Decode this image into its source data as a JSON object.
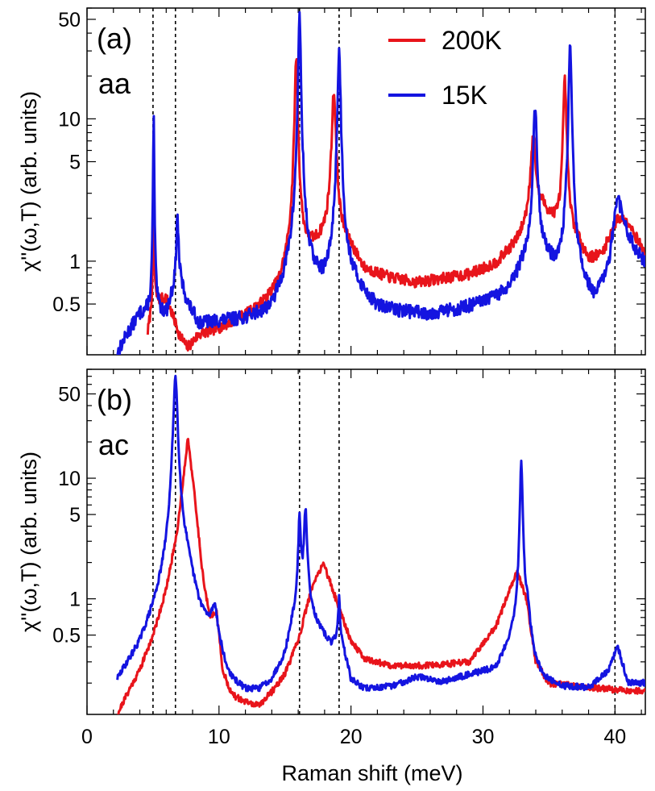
{
  "chart_data": {
    "type": "line",
    "xlabel": "Raman shift (meV)",
    "x_ticks": [
      0,
      10,
      20,
      30,
      40
    ],
    "xlim": [
      0,
      42.3
    ],
    "yscale": "log",
    "reference_lines_x": [
      5.0,
      6.7,
      16.1,
      19.1,
      40.0
    ],
    "legend": [
      {
        "name": "200K",
        "color": "#e8141b"
      },
      {
        "name": "15K",
        "color": "#1414e0"
      }
    ],
    "panels": [
      {
        "id": "a",
        "label": "(a)",
        "polarization": "aa",
        "ylabel": "χ''(ω,T) (arb. units)",
        "ylim": [
          0.22,
          60
        ],
        "y_tick_labels": [
          {
            "value": 50,
            "label": "50"
          },
          {
            "value": 10,
            "label": "10"
          },
          {
            "value": 5,
            "label": "5"
          },
          {
            "value": 1,
            "label": "1"
          },
          {
            "value": 0.5,
            "label": "0.5"
          }
        ],
        "series": [
          {
            "name": "200K",
            "color": "#e8141b",
            "baseline": [
              [
                4.6,
                0.3
              ],
              [
                5,
                0.5
              ],
              [
                6,
                0.55
              ],
              [
                7,
                0.3
              ],
              [
                7.6,
                0.24
              ],
              [
                8.5,
                0.3
              ],
              [
                10,
                0.33
              ],
              [
                12,
                0.4
              ],
              [
                13,
                0.45
              ],
              [
                14.5,
                0.6
              ],
              [
                15.5,
                1
              ],
              [
                17,
                1.2
              ],
              [
                18.5,
                1.5
              ],
              [
                20,
                1.2
              ],
              [
                21,
                0.85
              ],
              [
                23,
                0.75
              ],
              [
                25,
                0.7
              ],
              [
                27,
                0.75
              ],
              [
                29,
                0.8
              ],
              [
                31,
                0.95
              ],
              [
                32.5,
                1.3
              ],
              [
                34.5,
                2.3
              ],
              [
                35.5,
                1.8
              ],
              [
                37,
                1.4
              ],
              [
                38,
                1.0
              ],
              [
                39,
                1.1
              ],
              [
                40.2,
                2.0
              ],
              [
                41,
                1.9
              ],
              [
                42.3,
                1.1
              ]
            ],
            "peaks": [
              {
                "x": 5.05,
                "h": 2.0,
                "w": 0.08
              },
              {
                "x": 15.85,
                "h": 26,
                "w": 0.2
              },
              {
                "x": 18.7,
                "h": 14,
                "w": 0.28
              },
              {
                "x": 33.8,
                "h": 5.5,
                "w": 0.38
              },
              {
                "x": 36.2,
                "h": 17,
                "w": 0.22
              }
            ],
            "noise": 0.09,
            "seed": 7
          },
          {
            "name": "15K",
            "color": "#1414e0",
            "baseline": [
              [
                2.3,
                0.22
              ],
              [
                3,
                0.3
              ],
              [
                4,
                0.42
              ],
              [
                5,
                0.45
              ],
              [
                6,
                0.42
              ],
              [
                6.9,
                0.8
              ],
              [
                7.6,
                0.5
              ],
              [
                8.5,
                0.36
              ],
              [
                10,
                0.37
              ],
              [
                12,
                0.38
              ],
              [
                14,
                0.42
              ],
              [
                15.5,
                0.8
              ],
              [
                17,
                0.7
              ],
              [
                18,
                0.6
              ],
              [
                19.2,
                0.8
              ],
              [
                20,
                0.7
              ],
              [
                21,
                0.55
              ],
              [
                22,
                0.45
              ],
              [
                24,
                0.43
              ],
              [
                26,
                0.42
              ],
              [
                28,
                0.45
              ],
              [
                30,
                0.5
              ],
              [
                32,
                0.6
              ],
              [
                33,
                0.9
              ],
              [
                34.5,
                1.1
              ],
              [
                35.5,
                0.8
              ],
              [
                37.5,
                0.6
              ],
              [
                38.5,
                0.5
              ],
              [
                39.5,
                0.9
              ],
              [
                40.2,
                2.8
              ],
              [
                41,
                1.5
              ],
              [
                42.3,
                0.95
              ]
            ],
            "peaks": [
              {
                "x": 5.05,
                "h": 10,
                "w": 0.07
              },
              {
                "x": 6.85,
                "h": 1.3,
                "w": 0.15
              },
              {
                "x": 16.1,
                "h": 52,
                "w": 0.17
              },
              {
                "x": 19.1,
                "h": 29,
                "w": 0.2
              },
              {
                "x": 33.95,
                "h": 11,
                "w": 0.25
              },
              {
                "x": 36.6,
                "h": 30,
                "w": 0.2
              }
            ],
            "noise": 0.11,
            "seed": 13
          }
        ]
      },
      {
        "id": "b",
        "label": "(b)",
        "polarization": "ac",
        "ylabel": "χ''(ω,T) (arb. units)",
        "ylim": [
          0.11,
          80
        ],
        "y_tick_labels": [
          {
            "value": 50,
            "label": "50"
          },
          {
            "value": 10,
            "label": "10"
          },
          {
            "value": 5,
            "label": "5"
          },
          {
            "value": 1,
            "label": "1"
          },
          {
            "value": 0.5,
            "label": "0.5"
          }
        ],
        "series": [
          {
            "name": "200K",
            "color": "#e8141b",
            "baseline": [
              [
                2.3,
                0.11
              ],
              [
                3,
                0.16
              ],
              [
                4,
                0.26
              ],
              [
                5,
                0.5
              ],
              [
                6,
                1.2
              ],
              [
                6.8,
                3.5
              ],
              [
                7.2,
                8
              ],
              [
                7.65,
                22
              ],
              [
                8.1,
                8
              ],
              [
                8.8,
                1.5
              ],
              [
                9.3,
                0.7
              ],
              [
                9.8,
                0.8
              ],
              [
                10.3,
                0.25
              ],
              [
                11,
                0.16
              ],
              [
                12,
                0.14
              ],
              [
                13,
                0.13
              ],
              [
                14,
                0.17
              ],
              [
                15,
                0.24
              ],
              [
                16,
                0.45
              ],
              [
                17,
                1.2
              ],
              [
                17.9,
                2.0
              ],
              [
                19,
                0.9
              ],
              [
                20,
                0.45
              ],
              [
                21,
                0.32
              ],
              [
                23,
                0.28
              ],
              [
                26,
                0.28
              ],
              [
                29,
                0.3
              ],
              [
                31,
                0.6
              ],
              [
                32.6,
                1.7
              ],
              [
                33.3,
                1.0
              ],
              [
                34,
                0.3
              ],
              [
                35,
                0.2
              ],
              [
                37,
                0.19
              ],
              [
                39,
                0.18
              ],
              [
                42.3,
                0.17
              ]
            ],
            "peaks": [],
            "noise": 0.06,
            "seed": 21
          },
          {
            "name": "15K",
            "color": "#1414e0",
            "baseline": [
              [
                2.3,
                0.15
              ],
              [
                3,
                0.2
              ],
              [
                4,
                0.28
              ],
              [
                5,
                0.5
              ],
              [
                6,
                0.9
              ],
              [
                6.8,
                1.5
              ],
              [
                7.5,
                1.6
              ],
              [
                8.5,
                0.6
              ],
              [
                9.2,
                0.5
              ],
              [
                9.7,
                0.8
              ],
              [
                10,
                0.4
              ],
              [
                10.5,
                0.2
              ],
              [
                11,
                0.15
              ],
              [
                12,
                0.13
              ],
              [
                13,
                0.14
              ],
              [
                14,
                0.18
              ],
              [
                15,
                0.3
              ],
              [
                15.6,
                0.6
              ],
              [
                16.6,
                0.9
              ],
              [
                17.5,
                0.55
              ],
              [
                18.5,
                0.4
              ],
              [
                19.1,
                0.5
              ],
              [
                19.5,
                0.35
              ],
              [
                20,
                0.2
              ],
              [
                21,
                0.17
              ],
              [
                23,
                0.18
              ],
              [
                25,
                0.22
              ],
              [
                27,
                0.2
              ],
              [
                29,
                0.23
              ],
              [
                31,
                0.25
              ],
              [
                32,
                0.4
              ],
              [
                33.4,
                0.7
              ],
              [
                33.8,
                0.3
              ],
              [
                34.5,
                0.2
              ],
              [
                36,
                0.18
              ],
              [
                38,
                0.18
              ],
              [
                39.5,
                0.25
              ],
              [
                40.2,
                0.4
              ],
              [
                41,
                0.2
              ],
              [
                42.3,
                0.2
              ]
            ],
            "peaks": [
              {
                "x": 6.7,
                "h": 68,
                "w": 0.28
              },
              {
                "x": 16.1,
                "h": 4.0,
                "w": 0.18
              },
              {
                "x": 16.55,
                "h": 4.5,
                "w": 0.22
              },
              {
                "x": 19.1,
                "h": 0.55,
                "w": 0.12
              },
              {
                "x": 32.9,
                "h": 13,
                "w": 0.17
              }
            ],
            "noise": 0.06,
            "seed": 29
          }
        ]
      }
    ]
  }
}
